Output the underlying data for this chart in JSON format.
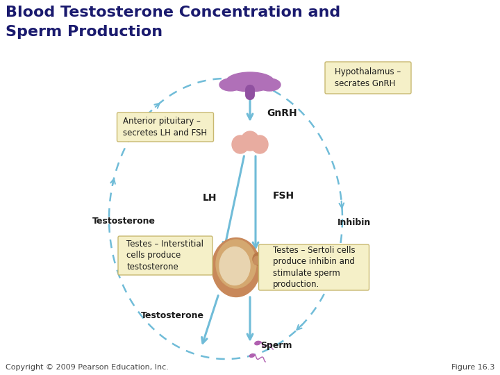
{
  "title_line1": "Blood Testosterone Concentration and",
  "title_line2": "Sperm Production",
  "title_color": "#1a1a6e",
  "title_fontsize": 16,
  "bg_color": "#ffffff",
  "copyright_text": "Copyright © 2009 Pearson Education, Inc.",
  "figure_text": "Figure 16.3",
  "footer_fontsize": 8,
  "footer_color": "#444444",
  "label_hypothalamus": "Hypothalamus –\nsecrates GnRH",
  "label_ant_pituitary": "Anterior pituitary –\nsecretes LH and FSH",
  "label_gnrh": "GnRH",
  "label_lh": "LH",
  "label_fsh": "FSH",
  "label_testosterone1": "Testosterone",
  "label_inhibin": "Inhibin",
  "label_testes_interstitial": "Testes – Interstitial\ncells produce\ntestosterone",
  "label_testes_sertoli": "Testes – Sertoli cells\nproduce inhibin and\nstimulate sperm\nproduction.",
  "label_testosterone2": "Testosterone",
  "label_sperm": "Sperm",
  "arrow_color": "#70bcd8",
  "dashed_color": "#70bcd8",
  "box_color": "#f5f0c8",
  "box_edge_color": "#c8b870",
  "text_dark": "#1a1a1a",
  "hypo_color": "#b070b8",
  "hypo_stalk_color": "#9050a0",
  "pit_color": "#e8aca0",
  "pit_dark": "#d89080",
  "testes_outer": "#c8956a",
  "testes_inner": "#b07848",
  "testes_cross": "#d4a870",
  "sperm_color": "#b060b0"
}
